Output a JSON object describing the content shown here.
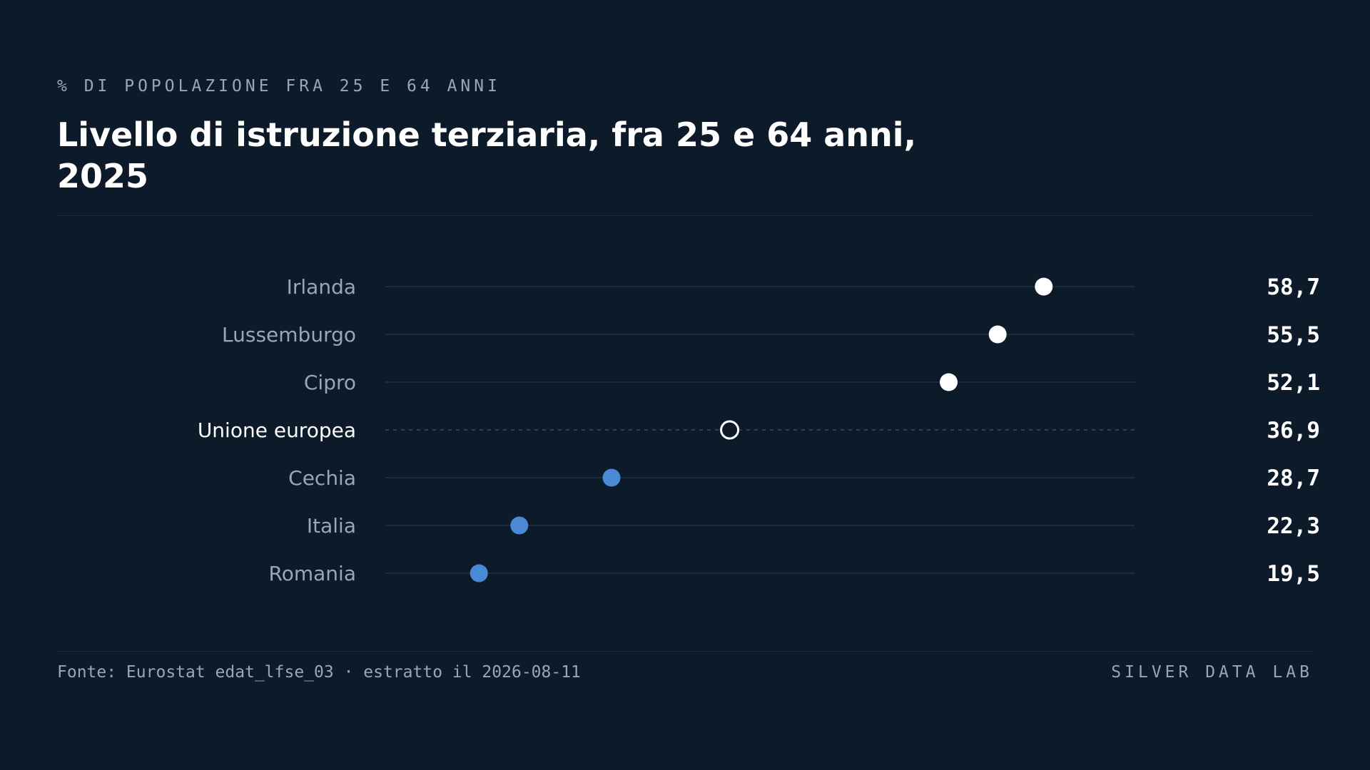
{
  "kicker": "% DI POPOLAZIONE FRA 25 E 64 ANNI",
  "footer": {
    "source": "Fonte: Eurostat edat_lfse_03 · estratto il 2026-08-11",
    "brand": "SILVER DATA LAB"
  },
  "colors": {
    "background": "#0d1a2a",
    "high": "#ffffff",
    "low": "#4a8ad4",
    "reference": "#ffffff",
    "track": "#1f3147",
    "label": "#9aa6b8"
  },
  "chart_data": {
    "type": "dot",
    "title": "Livello di istruzione terziaria, fra 25 e 64 anni, 2025",
    "xlabel": "",
    "ylabel": "",
    "xlim": [
      13,
      65
    ],
    "grid": false,
    "categories": [
      "Irlanda",
      "Lussemburgo",
      "Cipro",
      "Unione europea",
      "Cechia",
      "Italia",
      "Romania"
    ],
    "values": [
      58.7,
      55.5,
      52.1,
      36.9,
      28.7,
      22.3,
      19.5
    ],
    "value_labels": [
      "58,7",
      "55,5",
      "52,1",
      "36,9",
      "28,7",
      "22,3",
      "19,5"
    ],
    "groups": [
      "high",
      "high",
      "high",
      "reference",
      "low",
      "low",
      "low"
    ]
  }
}
